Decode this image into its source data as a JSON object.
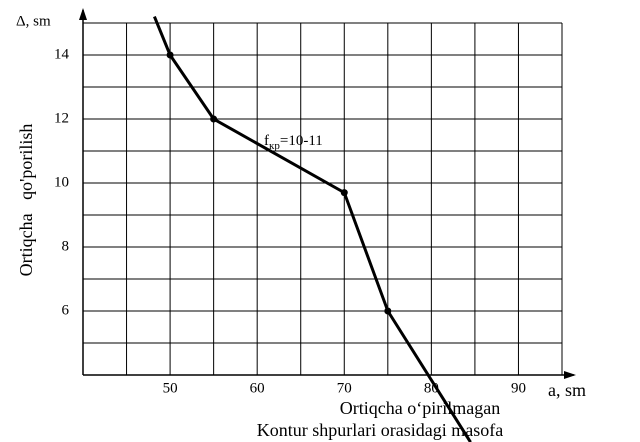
{
  "chart_data": {
    "type": "line",
    "ylabel": "Ortiqcha   qo'porilish",
    "yunit": "Δ, sm",
    "xunit": "a, sm",
    "xlabel_lines": [
      "Ortiqcha o‘pirilmagan",
      "Kontur shpurlari orasidagi masofa"
    ],
    "annotation": {
      "main": "f",
      "sub": "кр",
      "rest": "=10-11"
    },
    "xlim": [
      40,
      95
    ],
    "ylim": [
      4,
      15
    ],
    "xticks": [
      50,
      60,
      70,
      80,
      90
    ],
    "yticks": [
      6,
      8,
      10,
      12,
      14
    ],
    "xgrid": [
      40,
      45,
      50,
      55,
      60,
      65,
      70,
      75,
      80,
      85,
      90,
      95
    ],
    "ygrid": [
      4,
      5,
      6,
      7,
      8,
      9,
      10,
      11,
      12,
      13,
      14,
      15
    ],
    "grid": true,
    "series": [
      {
        "color": "#000000",
        "x": [
          48.2,
          50,
          55,
          70,
          75,
          84.5
        ],
        "values": [
          15.2,
          14,
          12,
          9.7,
          6,
          1.9
        ]
      }
    ]
  }
}
